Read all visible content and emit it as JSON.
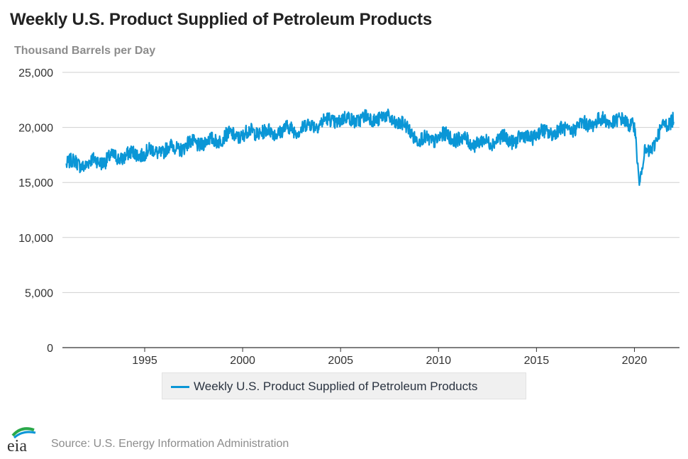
{
  "header": {
    "title": "Weekly U.S. Product Supplied of Petroleum Products",
    "units": "Thousand Barrels per Day"
  },
  "legend": {
    "label": "Weekly U.S. Product Supplied of Petroleum Products"
  },
  "footer": {
    "logo_text": "eia",
    "source": "Source: U.S. Energy Information Administration"
  },
  "colors": {
    "series": "#0a96d6",
    "grid": "#cfcfcf",
    "axis": "#333333"
  },
  "chart_data": {
    "type": "line",
    "title": "Weekly U.S. Product Supplied of Petroleum Products",
    "ylabel": "Thousand Barrels per Day",
    "xlabel": "",
    "xlim": [
      1990.8,
      2022.3
    ],
    "ylim": [
      0,
      25000
    ],
    "y_ticks": [
      0,
      5000,
      10000,
      15000,
      20000,
      25000
    ],
    "y_tick_labels": [
      "0",
      "5,000",
      "10,000",
      "15,000",
      "20,000",
      "25,000"
    ],
    "x_ticks": [
      1995,
      2000,
      2005,
      2010,
      2015,
      2020
    ],
    "x_tick_labels": [
      "1995",
      "2000",
      "2005",
      "2010",
      "2015",
      "2020"
    ],
    "grid": "horizontal",
    "legend_position": "bottom-center",
    "series": [
      {
        "name": "Weekly U.S. Product Supplied of Petroleum Products",
        "color": "#0a96d6",
        "x": [
          1991.0,
          1991.5,
          1992.0,
          1992.5,
          1993.0,
          1993.5,
          1994.0,
          1994.5,
          1995.0,
          1995.5,
          1996.0,
          1996.5,
          1997.0,
          1997.5,
          1998.0,
          1998.5,
          1999.0,
          1999.5,
          2000.0,
          2000.5,
          2001.0,
          2001.5,
          2002.0,
          2002.5,
          2003.0,
          2003.5,
          2004.0,
          2004.5,
          2005.0,
          2005.5,
          2006.0,
          2006.5,
          2007.0,
          2007.5,
          2008.0,
          2008.5,
          2009.0,
          2009.5,
          2010.0,
          2010.5,
          2011.0,
          2011.5,
          2012.0,
          2012.5,
          2013.0,
          2013.5,
          2014.0,
          2014.5,
          2015.0,
          2015.5,
          2016.0,
          2016.5,
          2017.0,
          2017.5,
          2018.0,
          2018.5,
          2019.0,
          2019.5,
          2020.0,
          2020.25,
          2020.5,
          2021.0,
          2021.5,
          2022.0
        ],
        "values": [
          16600,
          16900,
          16500,
          17100,
          16900,
          17400,
          17300,
          17700,
          17600,
          17900,
          17800,
          18300,
          18100,
          18700,
          18500,
          18900,
          19000,
          19400,
          19200,
          19700,
          19500,
          19600,
          19700,
          19900,
          19800,
          20300,
          20400,
          20700,
          20600,
          20800,
          20700,
          20900,
          20800,
          20900,
          20300,
          19800,
          18800,
          18900,
          19000,
          19300,
          18900,
          18800,
          18500,
          18700,
          18900,
          19000,
          18800,
          19200,
          19300,
          19600,
          19600,
          19800,
          19900,
          20400,
          20400,
          20700,
          20500,
          20600,
          20300,
          14500,
          17800,
          18300,
          20300,
          20800
        ]
      }
    ]
  }
}
